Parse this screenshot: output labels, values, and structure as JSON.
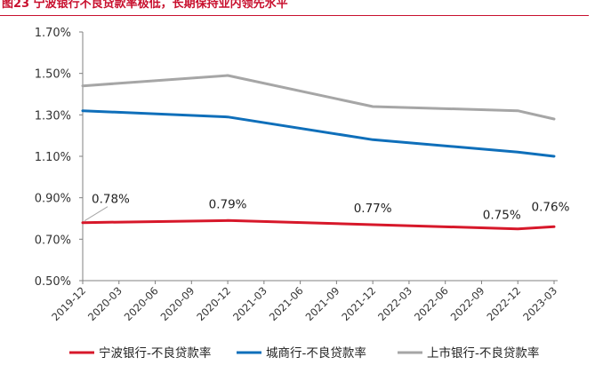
{
  "chart_data": {
    "type": "line",
    "title": "图23 宁波银行不良贷款率极低，长期保持业内领先水平",
    "xlabel": "",
    "ylabel": "",
    "x": [
      "2019-12",
      "2020-03",
      "2020-06",
      "2020-09",
      "2020-12",
      "2021-03",
      "2021-06",
      "2021-09",
      "2021-12",
      "2022-03",
      "2022-06",
      "2022-09",
      "2022-12",
      "2023-03"
    ],
    "y_ticks": [
      "1.70%",
      "1.50%",
      "1.30%",
      "1.10%",
      "0.90%",
      "0.70%",
      "0.50%"
    ],
    "ylim": [
      0.5,
      1.7
    ],
    "grid": false,
    "legend_position": "bottom",
    "series": [
      {
        "name": "宁波银行-不良贷款率",
        "color": "#d7182a",
        "values": [
          0.78,
          null,
          null,
          null,
          0.79,
          null,
          null,
          null,
          0.77,
          null,
          null,
          null,
          0.75,
          0.76
        ],
        "labels": [
          {
            "index": 0,
            "text": "0.78%"
          },
          {
            "index": 4,
            "text": "0.79%"
          },
          {
            "index": 8,
            "text": "0.77%"
          },
          {
            "index": 12,
            "text": "0.75%"
          },
          {
            "index": 13,
            "text": "0.76%"
          }
        ]
      },
      {
        "name": "城商行-不良贷款率",
        "color": "#0f6fba",
        "values": [
          1.32,
          null,
          null,
          null,
          1.29,
          null,
          null,
          null,
          1.18,
          null,
          null,
          null,
          1.12,
          1.1
        ]
      },
      {
        "name": "上市银行-不良贷款率",
        "color": "#a6a6a6",
        "values": [
          1.44,
          null,
          null,
          null,
          1.49,
          null,
          null,
          null,
          1.34,
          null,
          null,
          null,
          1.32,
          1.28
        ]
      }
    ]
  }
}
